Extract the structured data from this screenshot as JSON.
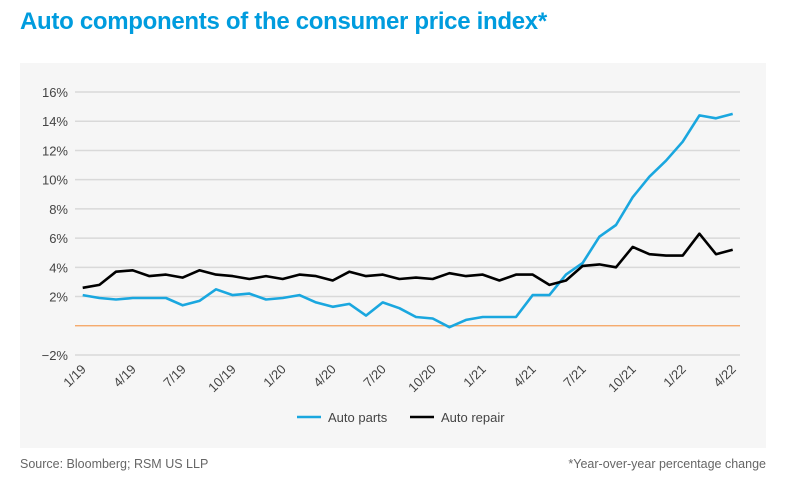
{
  "chart_data": {
    "type": "line",
    "title": "Auto components of the consumer price index*",
    "source": "Source: Bloomberg; RSM US LLP",
    "footnote": "*Year-over-year percentage change",
    "x": [
      "1/19",
      "2/19",
      "3/19",
      "4/19",
      "5/19",
      "6/19",
      "7/19",
      "8/19",
      "9/19",
      "10/19",
      "11/19",
      "12/19",
      "1/20",
      "2/20",
      "3/20",
      "4/20",
      "5/20",
      "6/20",
      "7/20",
      "8/20",
      "9/20",
      "10/20",
      "11/20",
      "12/20",
      "1/21",
      "2/21",
      "3/21",
      "4/21",
      "5/21",
      "6/21",
      "7/21",
      "8/21",
      "9/21",
      "10/21",
      "11/21",
      "12/21",
      "1/22",
      "2/22",
      "3/22",
      "4/22"
    ],
    "x_tick_labels": [
      "1/19",
      "4/19",
      "7/19",
      "10/19",
      "1/20",
      "4/20",
      "7/20",
      "10/20",
      "1/21",
      "4/21",
      "7/21",
      "10/21",
      "1/22",
      "4/22"
    ],
    "y_tick_labels": [
      "16%",
      "14%",
      "12%",
      "10%",
      "8%",
      "6%",
      "4%",
      "2%",
      "-2%"
    ],
    "y_ticks": [
      16,
      14,
      12,
      10,
      8,
      6,
      4,
      2,
      -2
    ],
    "ylim": [
      -2,
      16
    ],
    "grid": true,
    "zero_line_color": "#f5a05a",
    "legend_position": "bottom",
    "series": [
      {
        "name": "Auto parts",
        "color": "#1aa7df",
        "values": [
          2.1,
          1.9,
          1.8,
          1.9,
          1.9,
          1.9,
          1.4,
          1.7,
          2.5,
          2.1,
          2.2,
          1.8,
          1.9,
          2.1,
          1.6,
          1.3,
          1.5,
          0.7,
          1.6,
          1.2,
          0.6,
          0.5,
          -0.1,
          0.4,
          0.6,
          0.6,
          0.6,
          2.1,
          2.1,
          3.5,
          4.3,
          6.1,
          6.9,
          8.8,
          10.2,
          11.3,
          12.6,
          14.4,
          14.2,
          14.5
        ]
      },
      {
        "name": "Auto repair",
        "color": "#000000",
        "values": [
          2.6,
          2.8,
          3.7,
          3.8,
          3.4,
          3.5,
          3.3,
          3.8,
          3.5,
          3.4,
          3.2,
          3.4,
          3.2,
          3.5,
          3.4,
          3.1,
          3.7,
          3.4,
          3.5,
          3.2,
          3.3,
          3.2,
          3.6,
          3.4,
          3.5,
          3.1,
          3.5,
          3.5,
          2.8,
          3.1,
          4.1,
          4.2,
          4.0,
          5.4,
          4.9,
          4.8,
          4.8,
          6.3,
          4.9,
          5.2
        ]
      }
    ]
  }
}
